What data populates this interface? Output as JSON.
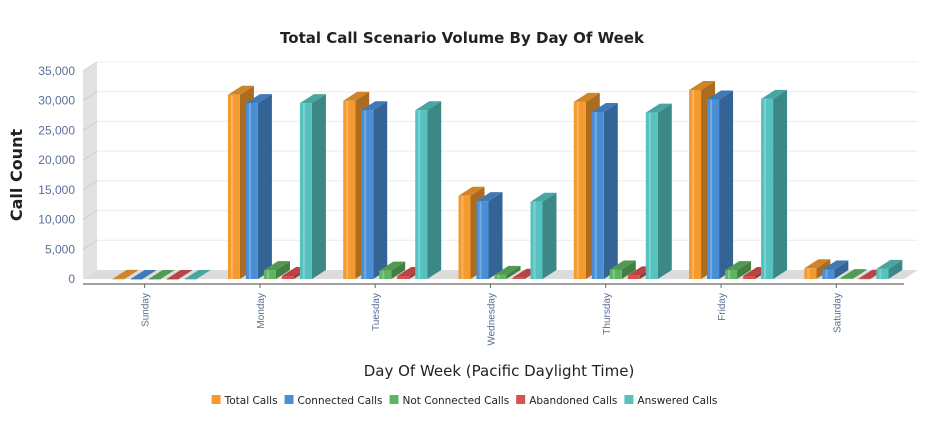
{
  "chart_data": {
    "type": "bar",
    "title": "Total Call Scenario Volume By Day Of Week",
    "xlabel": "Day Of Week (Pacific Daylight Time)",
    "ylabel": "Call Count",
    "ylim": [
      0,
      35000
    ],
    "yticks": [
      0,
      5000,
      10000,
      15000,
      20000,
      25000,
      30000,
      35000
    ],
    "ytick_labels": [
      "0",
      "5,000",
      "10,000",
      "15,000",
      "20,000",
      "25,000",
      "30,000",
      "35,000"
    ],
    "grid": true,
    "legend_position": "bottom",
    "categories": [
      "Sunday",
      "Monday",
      "Tuesday",
      "Wednesday",
      "Thursday",
      "Friday",
      "Saturday"
    ],
    "series": [
      {
        "name": "Total Calls",
        "color": "#f59a2e",
        "values": [
          20,
          31000,
          30000,
          14000,
          29800,
          31800,
          1800
        ]
      },
      {
        "name": "Connected Calls",
        "color": "#4a8fd6",
        "values": [
          10,
          29600,
          28400,
          13100,
          28100,
          30200,
          1600
        ]
      },
      {
        "name": "Not Connected Calls",
        "color": "#5fb55f",
        "values": [
          5,
          1500,
          1400,
          700,
          1600,
          1500,
          150
        ]
      },
      {
        "name": "Abandoned Calls",
        "color": "#d9504f",
        "values": [
          5,
          500,
          500,
          200,
          600,
          500,
          50
        ]
      },
      {
        "name": "Answered Calls",
        "color": "#56c2bf",
        "values": [
          10,
          29600,
          28400,
          13000,
          28000,
          30300,
          1700
        ]
      }
    ]
  }
}
